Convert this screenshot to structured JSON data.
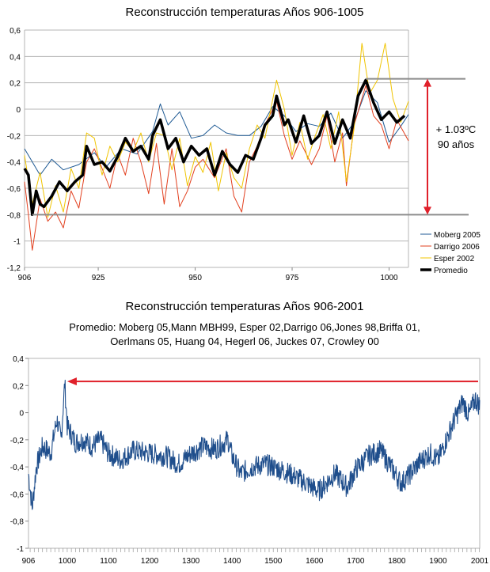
{
  "chart_data": [
    {
      "type": "line",
      "title": "Reconstrucción temperaturas Años 906-1005",
      "xlim": [
        906,
        1005
      ],
      "ylim": [
        -1.2,
        0.6
      ],
      "x_ticks": [
        "906",
        "925",
        "950",
        "975",
        "1000"
      ],
      "y_ticks": [
        "0,6",
        "0,4",
        "0,2",
        "0",
        "-0,2",
        "-0,4",
        "-0,6",
        "-0,8",
        "-1",
        "-1,2"
      ],
      "grid": "horizontal",
      "legend_position": "right",
      "series": [
        {
          "name": "Moberg 2005",
          "color": "#1f5a94",
          "points": [
            [
              906,
              -0.3
            ],
            [
              910,
              -0.5
            ],
            [
              913,
              -0.38
            ],
            [
              916,
              -0.46
            ],
            [
              920,
              -0.42
            ],
            [
              924,
              -0.33
            ],
            [
              927,
              -0.44
            ],
            [
              931,
              -0.3
            ],
            [
              935,
              -0.34
            ],
            [
              939,
              -0.17
            ],
            [
              941,
              0.04
            ],
            [
              943,
              -0.12
            ],
            [
              946,
              -0.02
            ],
            [
              949,
              -0.22
            ],
            [
              952,
              -0.2
            ],
            [
              955,
              -0.12
            ],
            [
              958,
              -0.18
            ],
            [
              961,
              -0.2
            ],
            [
              964,
              -0.2
            ],
            [
              967,
              -0.13
            ],
            [
              970,
              0.02
            ],
            [
              973,
              -0.05
            ],
            [
              976,
              -0.17
            ],
            [
              979,
              -0.11
            ],
            [
              982,
              -0.13
            ],
            [
              985,
              -0.03
            ],
            [
              988,
              -0.22
            ],
            [
              991,
              -0.1
            ],
            [
              994,
              0.14
            ],
            [
              997,
              0.05
            ],
            [
              1000,
              -0.25
            ],
            [
              1003,
              -0.13
            ],
            [
              1005,
              -0.04
            ]
          ]
        },
        {
          "name": "Darrigo 2006",
          "color": "#e2401f",
          "points": [
            [
              906,
              -0.55
            ],
            [
              907,
              -0.8
            ],
            [
              908,
              -1.07
            ],
            [
              910,
              -0.68
            ],
            [
              912,
              -0.85
            ],
            [
              914,
              -0.78
            ],
            [
              916,
              -0.9
            ],
            [
              918,
              -0.62
            ],
            [
              920,
              -0.75
            ],
            [
              922,
              -0.4
            ],
            [
              924,
              -0.3
            ],
            [
              926,
              -0.45
            ],
            [
              928,
              -0.6
            ],
            [
              930,
              -0.34
            ],
            [
              932,
              -0.5
            ],
            [
              934,
              -0.22
            ],
            [
              936,
              -0.4
            ],
            [
              938,
              -0.64
            ],
            [
              940,
              -0.26
            ],
            [
              942,
              -0.72
            ],
            [
              944,
              -0.3
            ],
            [
              946,
              -0.74
            ],
            [
              948,
              -0.62
            ],
            [
              950,
              -0.44
            ],
            [
              952,
              -0.38
            ],
            [
              955,
              -0.52
            ],
            [
              958,
              -0.3
            ],
            [
              960,
              -0.66
            ],
            [
              962,
              -0.78
            ],
            [
              964,
              -0.4
            ],
            [
              966,
              -0.28
            ],
            [
              968,
              -0.12
            ],
            [
              971,
              0.06
            ],
            [
              973,
              -0.2
            ],
            [
              975,
              -0.38
            ],
            [
              977,
              -0.24
            ],
            [
              980,
              -0.42
            ],
            [
              982,
              -0.3
            ],
            [
              984,
              -0.05
            ],
            [
              986,
              -0.4
            ],
            [
              988,
              -0.18
            ],
            [
              989,
              -0.58
            ],
            [
              991,
              -0.12
            ],
            [
              994,
              0.18
            ],
            [
              996,
              -0.05
            ],
            [
              998,
              -0.12
            ],
            [
              1000,
              -0.3
            ],
            [
              1002,
              -0.08
            ],
            [
              1005,
              -0.24
            ]
          ]
        },
        {
          "name": "Esper 2002",
          "color": "#f0c400",
          "points": [
            [
              906,
              -0.35
            ],
            [
              908,
              -0.72
            ],
            [
              910,
              -0.48
            ],
            [
              912,
              -0.82
            ],
            [
              914,
              -0.58
            ],
            [
              916,
              -0.78
            ],
            [
              918,
              -0.45
            ],
            [
              920,
              -0.6
            ],
            [
              922,
              -0.18
            ],
            [
              924,
              -0.22
            ],
            [
              926,
              -0.5
            ],
            [
              928,
              -0.28
            ],
            [
              930,
              -0.4
            ],
            [
              932,
              -0.25
            ],
            [
              934,
              -0.32
            ],
            [
              936,
              -0.18
            ],
            [
              938,
              -0.4
            ],
            [
              940,
              -0.18
            ],
            [
              942,
              -0.2
            ],
            [
              944,
              -0.46
            ],
            [
              946,
              -0.22
            ],
            [
              948,
              -0.58
            ],
            [
              950,
              -0.36
            ],
            [
              952,
              -0.48
            ],
            [
              954,
              -0.25
            ],
            [
              956,
              -0.62
            ],
            [
              958,
              -0.33
            ],
            [
              960,
              -0.52
            ],
            [
              962,
              -0.6
            ],
            [
              964,
              -0.3
            ],
            [
              966,
              -0.12
            ],
            [
              968,
              -0.22
            ],
            [
              971,
              0.22
            ],
            [
              973,
              0.0
            ],
            [
              975,
              -0.35
            ],
            [
              977,
              -0.1
            ],
            [
              979,
              -0.38
            ],
            [
              981,
              -0.2
            ],
            [
              983,
              -0.04
            ],
            [
              985,
              -0.3
            ],
            [
              987,
              -0.02
            ],
            [
              989,
              -0.55
            ],
            [
              991,
              -0.14
            ],
            [
              993,
              0.5
            ],
            [
              995,
              0.12
            ],
            [
              997,
              0.22
            ],
            [
              999,
              0.5
            ],
            [
              1001,
              0.08
            ],
            [
              1003,
              -0.1
            ],
            [
              1005,
              0.06
            ]
          ]
        },
        {
          "name": "Promedio",
          "color": "#000000",
          "points": [
            [
              906,
              -0.45
            ],
            [
              907,
              -0.5
            ],
            [
              908,
              -0.8
            ],
            [
              909,
              -0.62
            ],
            [
              910,
              -0.72
            ],
            [
              911,
              -0.74
            ],
            [
              913,
              -0.66
            ],
            [
              915,
              -0.55
            ],
            [
              917,
              -0.62
            ],
            [
              919,
              -0.55
            ],
            [
              921,
              -0.5
            ],
            [
              922,
              -0.28
            ],
            [
              924,
              -0.42
            ],
            [
              926,
              -0.4
            ],
            [
              928,
              -0.47
            ],
            [
              930,
              -0.36
            ],
            [
              932,
              -0.22
            ],
            [
              934,
              -0.32
            ],
            [
              936,
              -0.28
            ],
            [
              938,
              -0.38
            ],
            [
              939,
              -0.2
            ],
            [
              941,
              -0.08
            ],
            [
              943,
              -0.3
            ],
            [
              945,
              -0.22
            ],
            [
              947,
              -0.4
            ],
            [
              949,
              -0.28
            ],
            [
              951,
              -0.35
            ],
            [
              953,
              -0.3
            ],
            [
              955,
              -0.5
            ],
            [
              957,
              -0.32
            ],
            [
              959,
              -0.42
            ],
            [
              961,
              -0.48
            ],
            [
              963,
              -0.35
            ],
            [
              965,
              -0.38
            ],
            [
              967,
              -0.22
            ],
            [
              968,
              -0.12
            ],
            [
              970,
              -0.05
            ],
            [
              971,
              0.1
            ],
            [
              973,
              -0.12
            ],
            [
              974,
              -0.08
            ],
            [
              976,
              -0.25
            ],
            [
              978,
              -0.05
            ],
            [
              980,
              -0.26
            ],
            [
              982,
              -0.2
            ],
            [
              984,
              -0.02
            ],
            [
              986,
              -0.26
            ],
            [
              988,
              -0.08
            ],
            [
              990,
              -0.22
            ],
            [
              992,
              0.1
            ],
            [
              994,
              0.22
            ],
            [
              996,
              0.05
            ],
            [
              998,
              -0.08
            ],
            [
              1000,
              -0.02
            ],
            [
              1002,
              -0.1
            ],
            [
              1004,
              -0.05
            ]
          ]
        }
      ],
      "annotations": {
        "reference_lines": [
          0.23,
          -0.8
        ],
        "label_line1": "+ 1.03ºC",
        "label_line2": "90 años",
        "arrow_color": "#e0202a"
      }
    },
    {
      "type": "line",
      "title": "Reconstrucción temperaturas Años 906-2001",
      "subtitle_line1": "Promedio: Moberg 05,Mann MBH99, Esper 02,Darrigo 06,Jones 98,Briffa 01,",
      "subtitle_line2": "Oerlmans 05, Huang 04, Hegerl 06, Juckes 07, Crowley 00",
      "xlim": [
        906,
        2001
      ],
      "ylim": [
        -1,
        0.4
      ],
      "x_ticks": [
        "906",
        "1000",
        "1100",
        "1200",
        "1300",
        "1400",
        "1500",
        "1600",
        "1700",
        "1800",
        "1900",
        "2001"
      ],
      "y_ticks": [
        "0,4",
        "0,2",
        "0",
        "-0,2",
        "-0,4",
        "-0,6",
        "-0,8",
        "-1"
      ],
      "grid": "none",
      "series": [
        {
          "name": "Promedio",
          "color": "#1f4e8c",
          "points": [
            [
              906,
              -0.45
            ],
            [
              915,
              -0.7
            ],
            [
              925,
              -0.4
            ],
            [
              940,
              -0.25
            ],
            [
              960,
              -0.3
            ],
            [
              975,
              -0.05
            ],
            [
              985,
              -0.2
            ],
            [
              994,
              0.22
            ],
            [
              1000,
              -0.1
            ],
            [
              1020,
              -0.22
            ],
            [
              1040,
              -0.2
            ],
            [
              1060,
              -0.25
            ],
            [
              1080,
              -0.2
            ],
            [
              1100,
              -0.3
            ],
            [
              1130,
              -0.35
            ],
            [
              1160,
              -0.28
            ],
            [
              1200,
              -0.3
            ],
            [
              1240,
              -0.32
            ],
            [
              1270,
              -0.38
            ],
            [
              1300,
              -0.3
            ],
            [
              1330,
              -0.25
            ],
            [
              1360,
              -0.27
            ],
            [
              1390,
              -0.2
            ],
            [
              1400,
              -0.32
            ],
            [
              1420,
              -0.45
            ],
            [
              1450,
              -0.4
            ],
            [
              1480,
              -0.38
            ],
            [
              1500,
              -0.4
            ],
            [
              1540,
              -0.45
            ],
            [
              1580,
              -0.52
            ],
            [
              1610,
              -0.58
            ],
            [
              1650,
              -0.45
            ],
            [
              1680,
              -0.55
            ],
            [
              1700,
              -0.42
            ],
            [
              1730,
              -0.32
            ],
            [
              1760,
              -0.28
            ],
            [
              1790,
              -0.42
            ],
            [
              1810,
              -0.52
            ],
            [
              1830,
              -0.46
            ],
            [
              1850,
              -0.38
            ],
            [
              1880,
              -0.3
            ],
            [
              1900,
              -0.35
            ],
            [
              1920,
              -0.2
            ],
            [
              1940,
              -0.05
            ],
            [
              1960,
              0.08
            ],
            [
              1975,
              -0.02
            ],
            [
              1990,
              0.1
            ],
            [
              2001,
              0.05
            ]
          ]
        }
      ],
      "annotations": {
        "reference_level": 0.23,
        "arrow_color": "#e0202a"
      }
    }
  ]
}
